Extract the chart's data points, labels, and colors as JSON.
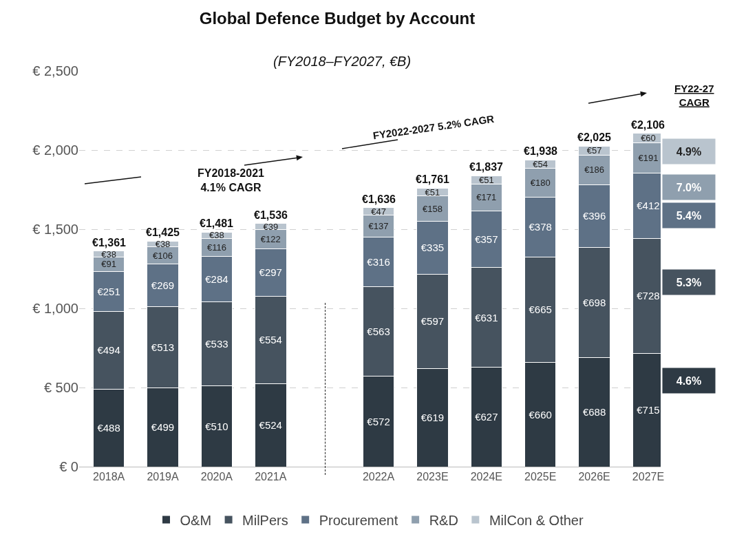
{
  "chart_data": {
    "type": "bar",
    "stacked": true,
    "title": "Global Defence Budget by Account",
    "subtitle": "(FY2018–FY2027, €B)",
    "categories": [
      "2018A",
      "2019A",
      "2020A",
      "2021A",
      null,
      "2022A",
      "2023E",
      "2024E",
      "2025E",
      "2026E",
      "2027E"
    ],
    "series": [
      {
        "name": "O&M",
        "color": "#2e3a44",
        "values": [
          488,
          499,
          510,
          524,
          null,
          572,
          619,
          627,
          660,
          688,
          715
        ],
        "value_labels": [
          "€488",
          "€499",
          "€510",
          "€524",
          null,
          "€572",
          "€619",
          "€627",
          "€660",
          "€688",
          "€715"
        ]
      },
      {
        "name": "MilPers",
        "color": "#46535f",
        "values": [
          494,
          513,
          533,
          554,
          null,
          563,
          597,
          631,
          665,
          698,
          728
        ],
        "value_labels": [
          "€494",
          "€513",
          "€533",
          "€554",
          null,
          "€563",
          "€597",
          "€631",
          "€665",
          "€698",
          "€728"
        ]
      },
      {
        "name": "Procurement",
        "color": "#5e7186",
        "values": [
          251,
          269,
          284,
          297,
          null,
          316,
          335,
          357,
          378,
          396,
          412
        ],
        "value_labels": [
          "€251",
          "€269",
          "€284",
          "€297",
          null,
          "€316",
          "€335",
          "€357",
          "€378",
          "€396",
          "€412"
        ]
      },
      {
        "name": "R&D",
        "color": "#8f9fae",
        "values": [
          91,
          106,
          116,
          122,
          null,
          137,
          158,
          171,
          180,
          186,
          191
        ],
        "value_labels": [
          "€91",
          "€106",
          "€116",
          "€122",
          null,
          "€137",
          "€158",
          "€171",
          "€180",
          "€186",
          "€191"
        ]
      },
      {
        "name": "MilCon & Other",
        "color": "#b9c4ce",
        "values": [
          38,
          38,
          38,
          39,
          null,
          47,
          51,
          51,
          54,
          57,
          60
        ],
        "value_labels": [
          "€38",
          "€38",
          "€38",
          "€39",
          null,
          "€47",
          "€51",
          "€51",
          "€54",
          "€57",
          "€60"
        ]
      }
    ],
    "totals": [
      "€1,361",
      "€1,425",
      "€1,481",
      "€1,536",
      null,
      "€1,636",
      "€1,761",
      "€1,837",
      "€1,938",
      "€2,025",
      "€2,106"
    ],
    "ylim": [
      0,
      2500
    ],
    "yticks": [
      {
        "value": 0,
        "label": "€ 0"
      },
      {
        "value": 500,
        "label": "€ 500"
      },
      {
        "value": 1000,
        "label": "€ 1,000"
      },
      {
        "value": 1500,
        "label": "€ 1,500"
      },
      {
        "value": 2000,
        "label": "€ 2,000"
      },
      {
        "value": 2500,
        "label": "€ 2,500"
      }
    ],
    "grid": "y",
    "legend": "bottom",
    "annotations": [
      "FY2018-2021 4.1% CAGR",
      "FY2022-2027 5.2% CAGR",
      "FY22-27 CAGR",
      "4.9%",
      "7.0%",
      "5.4%",
      "5.3%",
      "4.6%"
    ]
  }
}
